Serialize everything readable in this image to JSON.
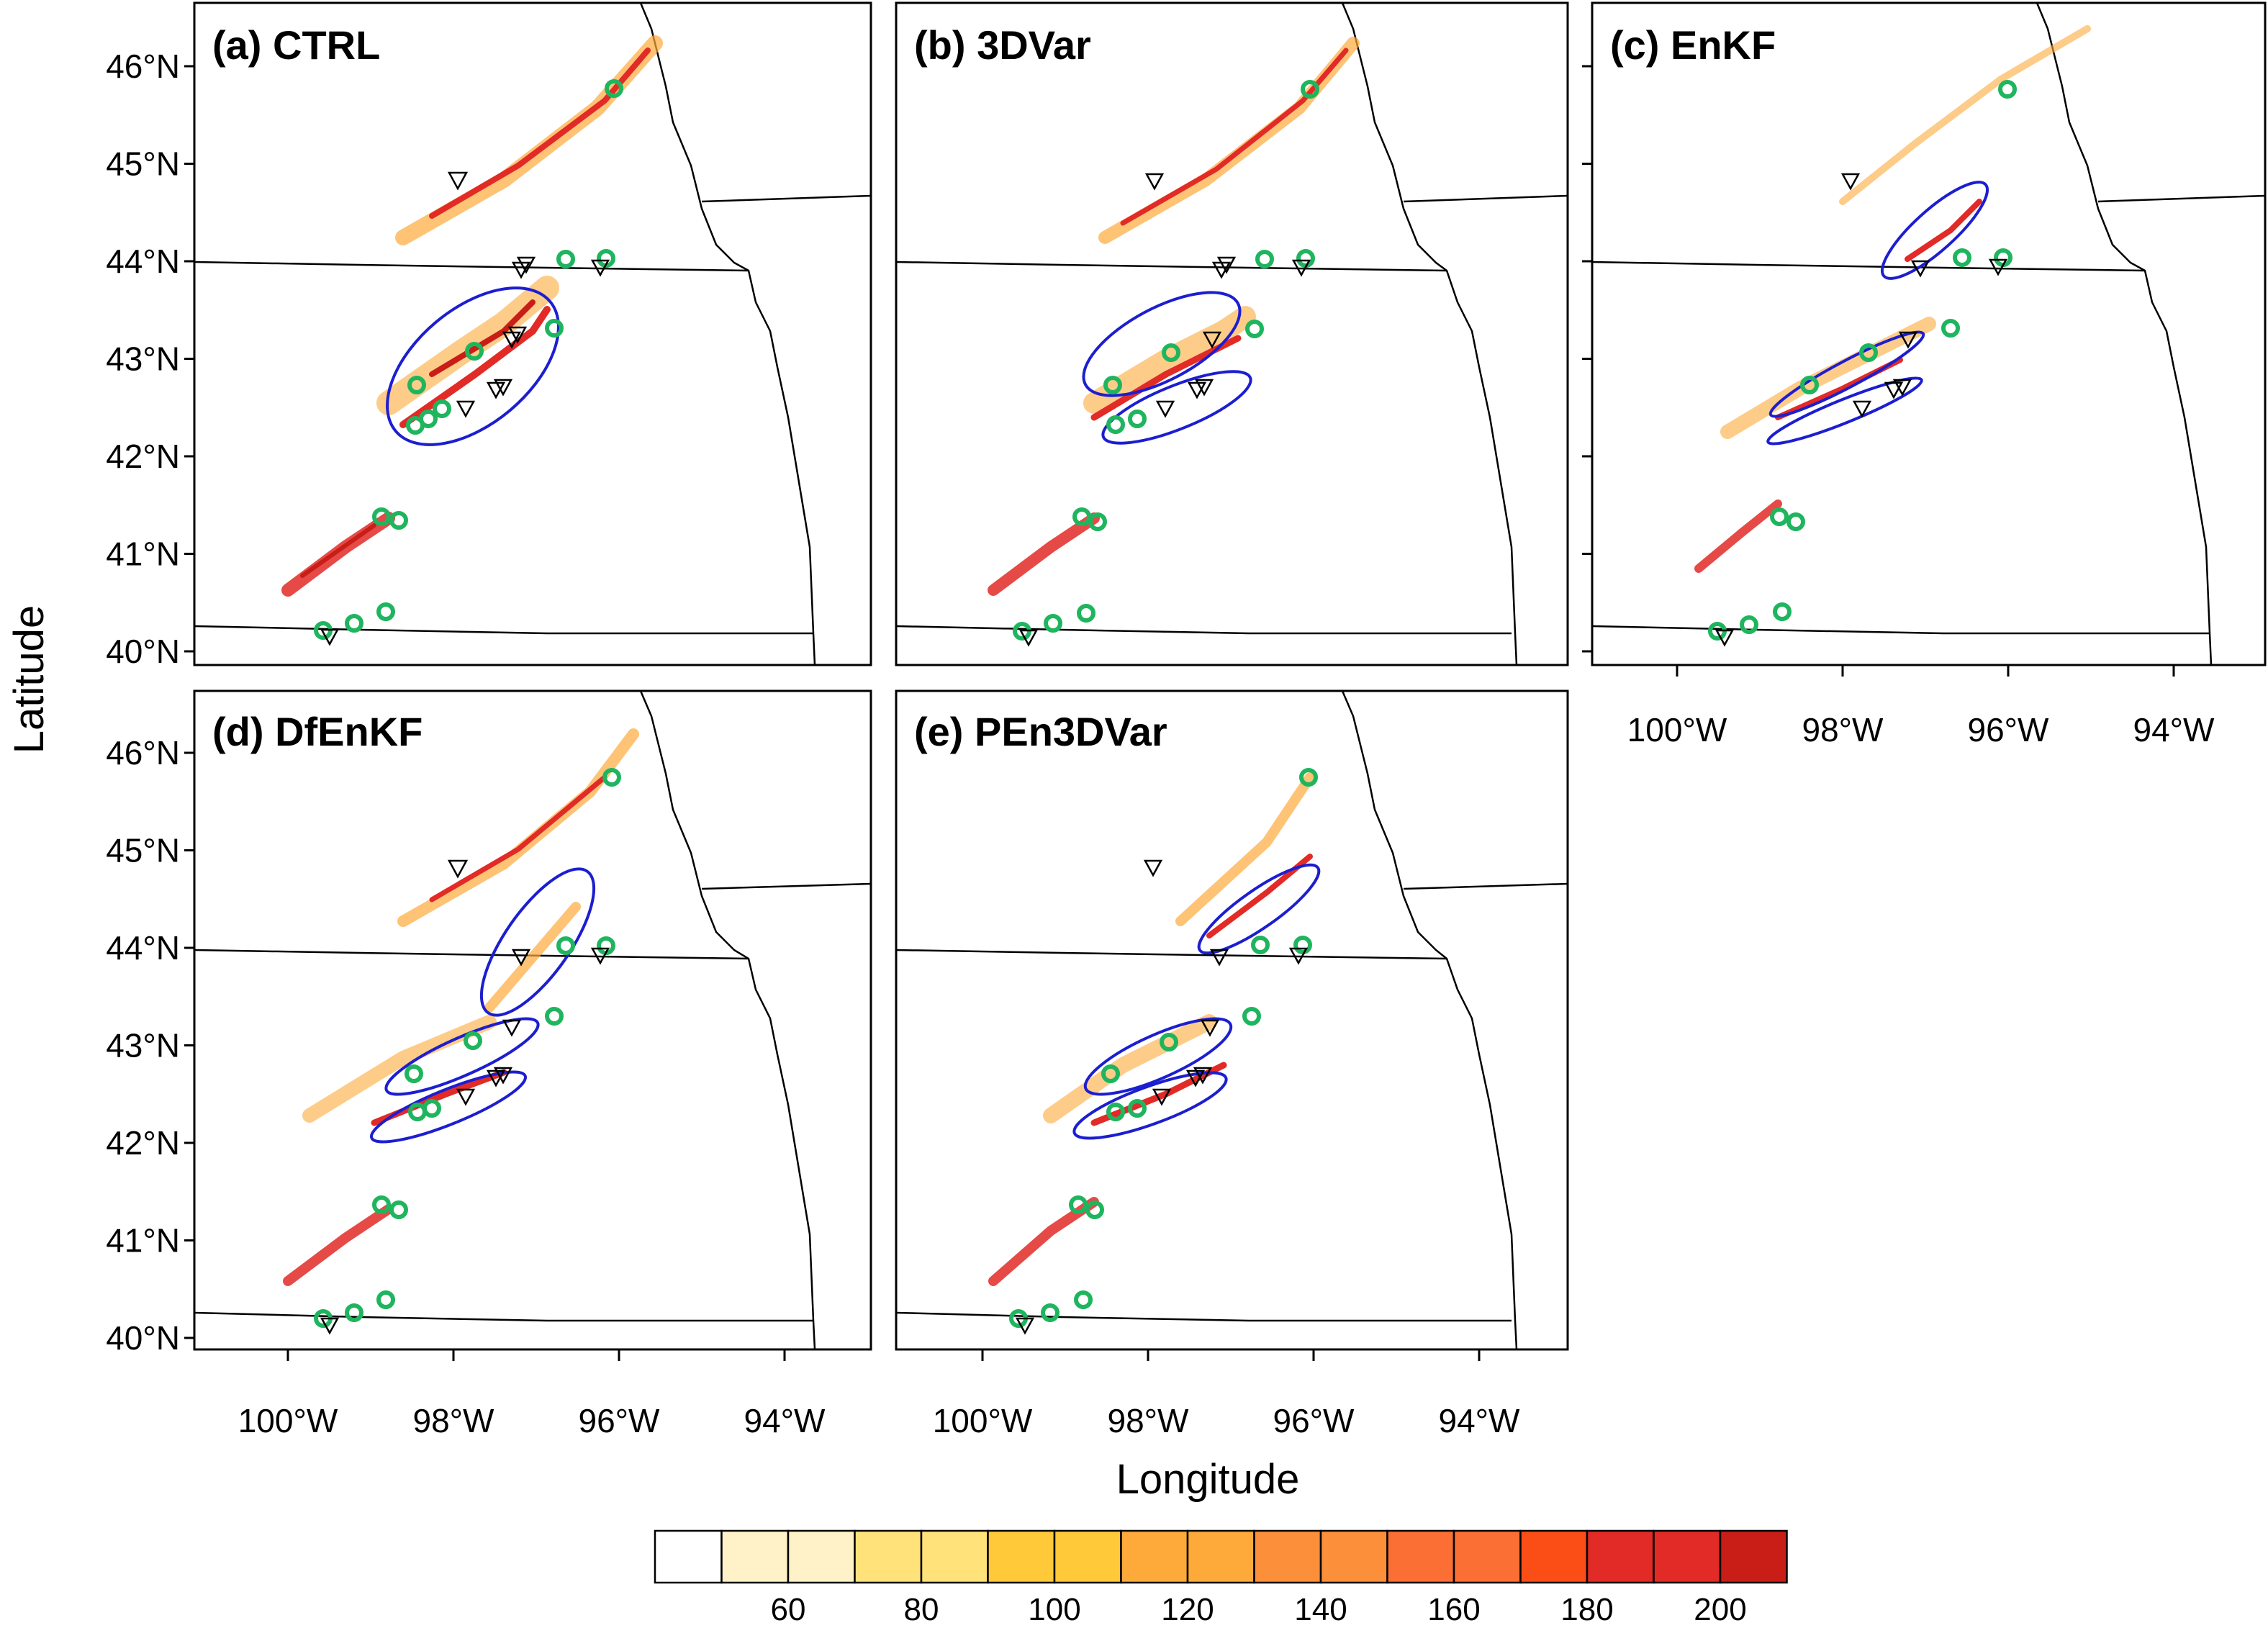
{
  "axes": {
    "ylabel": "Latitude",
    "xlabel": "Longitude",
    "lat_ticks": [
      {
        "value": 46,
        "label": "46°N"
      },
      {
        "value": 45,
        "label": "45°N"
      },
      {
        "value": 44,
        "label": "44°N"
      },
      {
        "value": 43,
        "label": "43°N"
      },
      {
        "value": 42,
        "label": "42°N"
      },
      {
        "value": 41,
        "label": "41°N"
      },
      {
        "value": 40,
        "label": "40°N"
      }
    ],
    "lon_ticks": [
      {
        "value": -100,
        "label": "100°W"
      },
      {
        "value": -98,
        "label": "98°W"
      },
      {
        "value": -96,
        "label": "96°W"
      },
      {
        "value": -94,
        "label": "94°W"
      }
    ]
  },
  "panels": [
    {
      "id": "a",
      "title": "(a) CTRL"
    },
    {
      "id": "b",
      "title": "(b) 3DVar"
    },
    {
      "id": "c",
      "title": "(c) EnKF"
    },
    {
      "id": "d",
      "title": "(d) DfEnKF"
    },
    {
      "id": "e",
      "title": "(e) PEn3DVar"
    }
  ],
  "colorbar": {
    "colors": [
      "#ffffff",
      "#fff1c8",
      "#fff1c8",
      "#ffe27a",
      "#ffe27a",
      "#ffc93a",
      "#ffc93a",
      "#fdaa3b",
      "#fdaa3b",
      "#fc8f3a",
      "#fc8f3a",
      "#fb6f35",
      "#fb6f35",
      "#fb4e16",
      "#e22a26",
      "#e22a26",
      "#c81e17"
    ],
    "labels": [
      {
        "value": 60,
        "label": "60"
      },
      {
        "value": 80,
        "label": "80"
      },
      {
        "value": 100,
        "label": "100"
      },
      {
        "value": 120,
        "label": "120"
      },
      {
        "value": 140,
        "label": "140"
      },
      {
        "value": 160,
        "label": "160"
      },
      {
        "value": 180,
        "label": "180"
      },
      {
        "value": 200,
        "label": "200"
      }
    ]
  },
  "colors": {
    "ellipse": "#1c1ed0",
    "circle_obs": "#1fb55f",
    "triangle_obs": "#000000",
    "boundary": "#000000"
  }
}
